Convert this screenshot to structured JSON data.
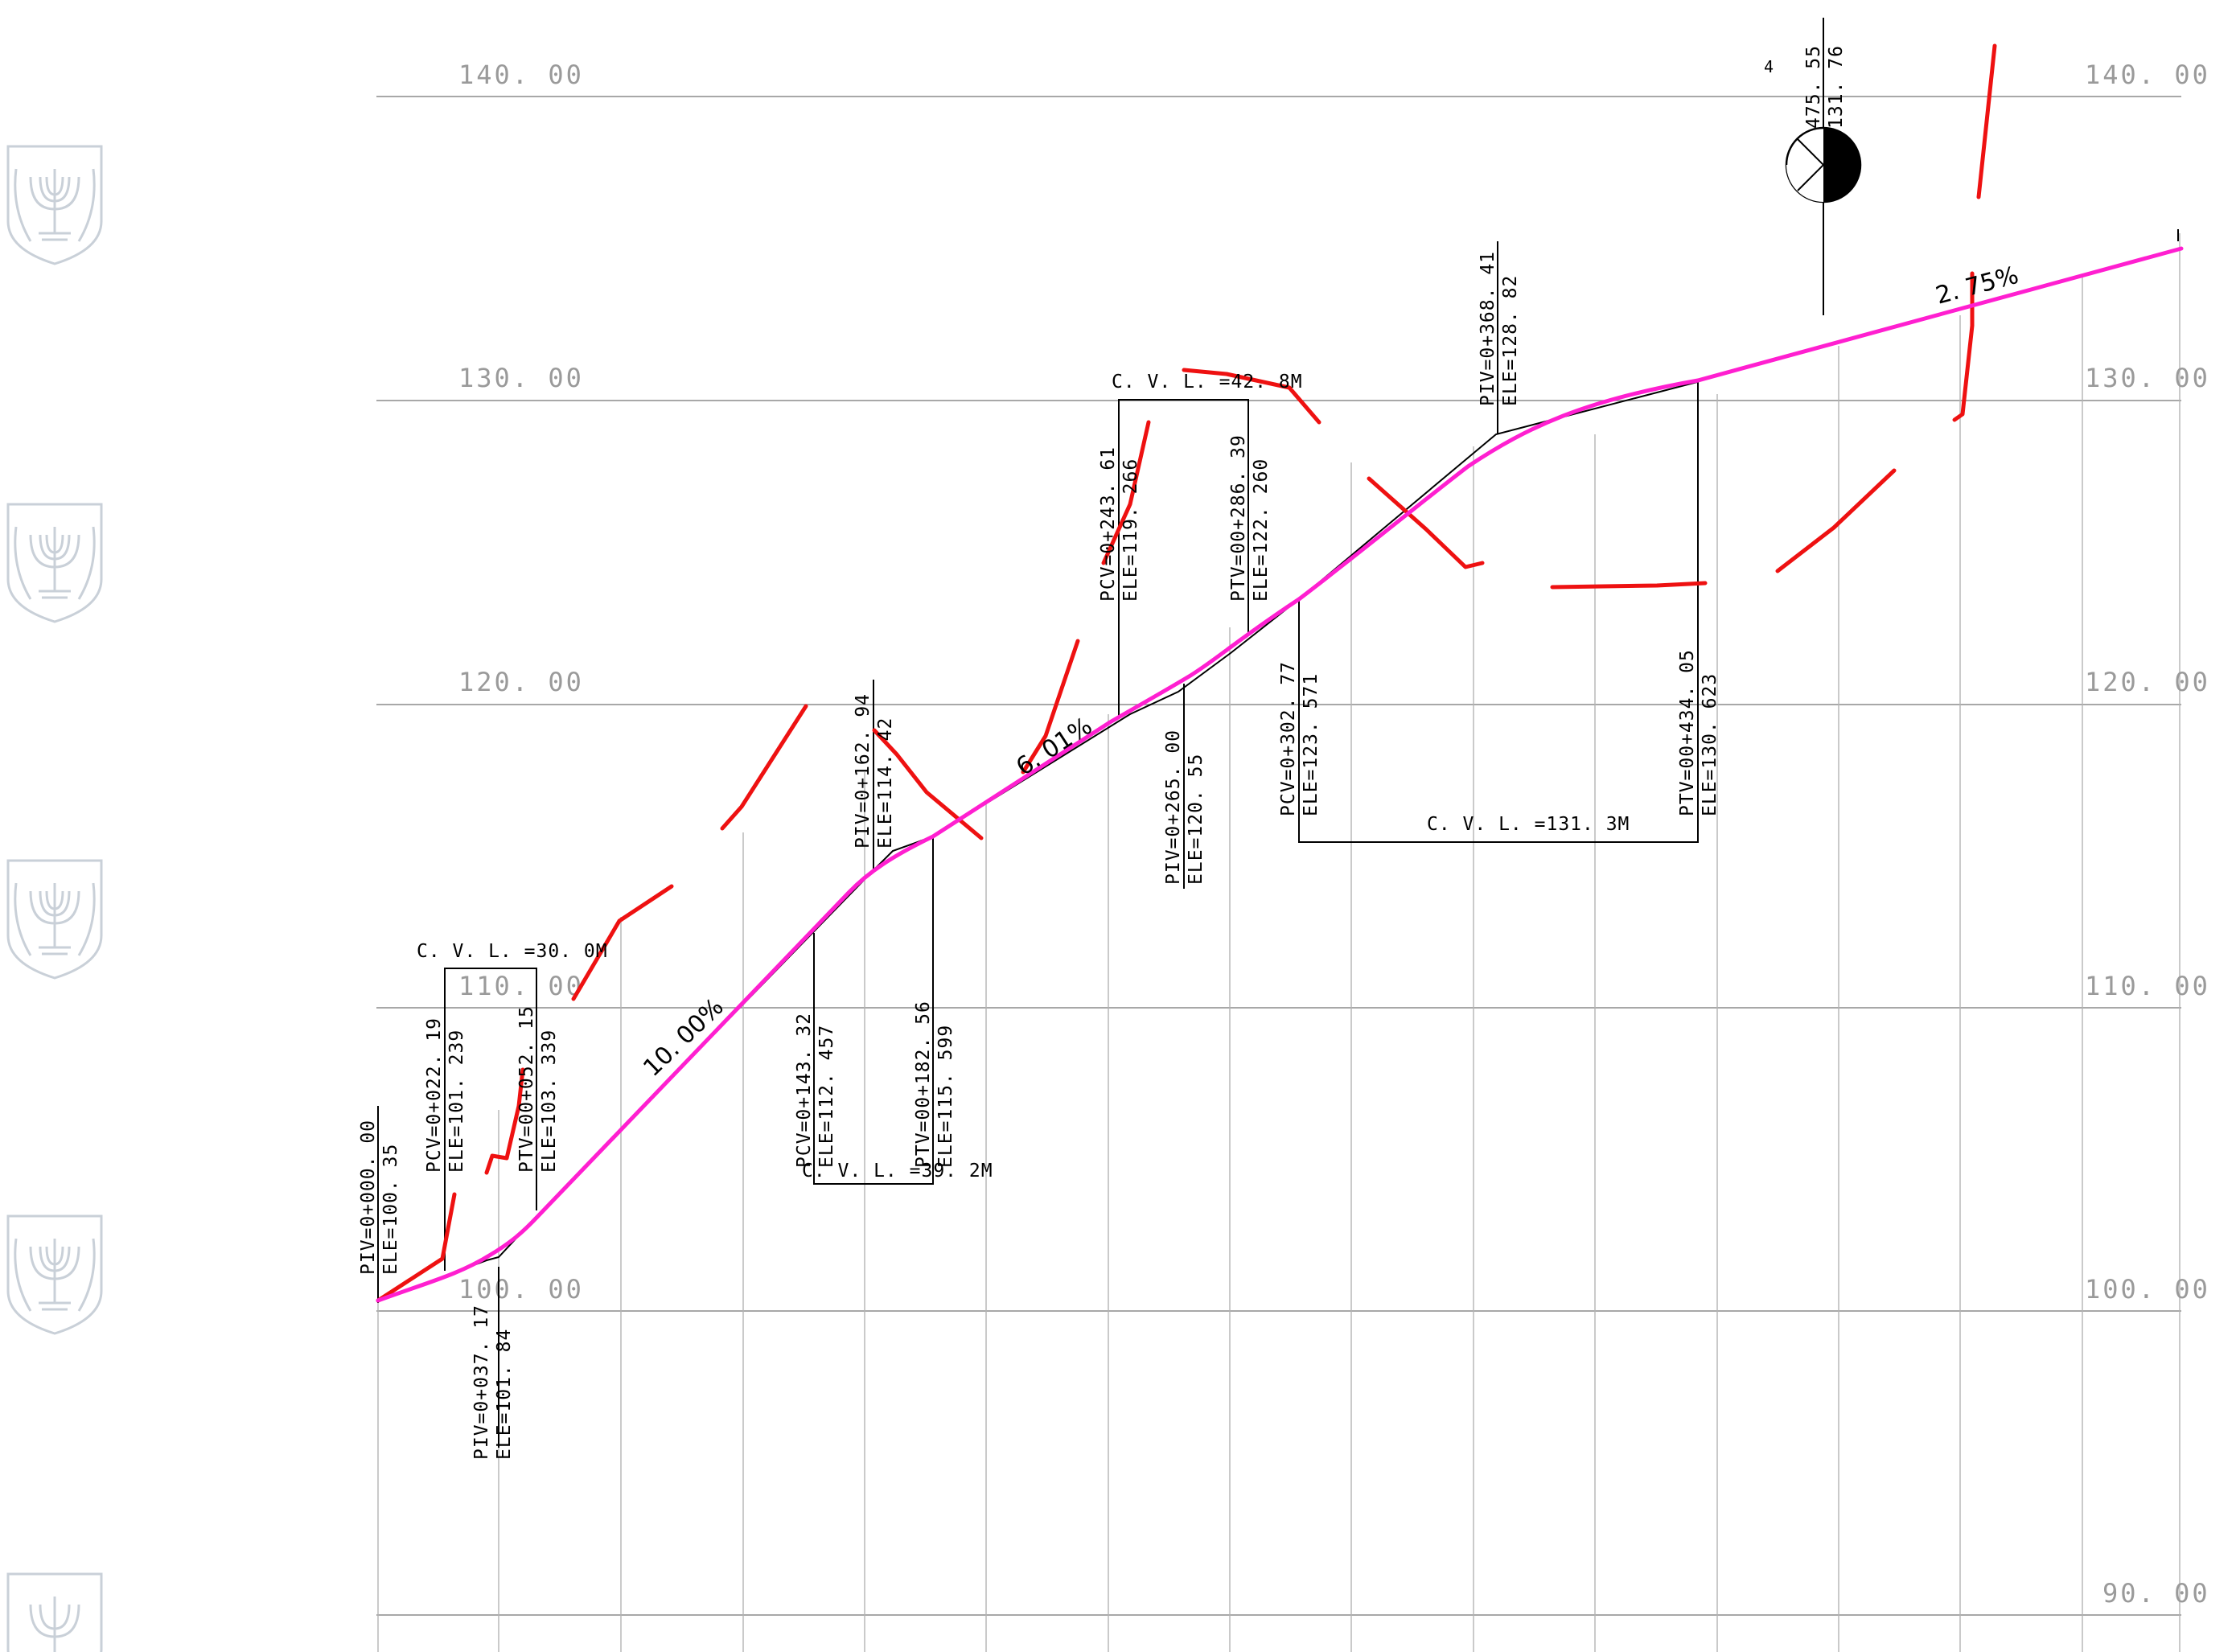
{
  "elevation_labels": [
    "140. 00",
    "130. 00",
    "120. 00",
    "110. 00",
    "100. 00",
    "90. 00"
  ],
  "curves": [
    {
      "pcv": "PCV=0+022. 19",
      "pcv_ele": "ELE=101. 239",
      "piv": "PIV=0+037. 17",
      "piv_ele": "ELE=101. 84",
      "ptv": "PTV=00+052. 15",
      "ptv_ele": "ELE=103. 339",
      "cvl": "C. V. L. =30. 0M"
    },
    {
      "pcv": "PCV=0+143. 32",
      "pcv_ele": "ELE=112. 457",
      "piv": "PIV=0+162. 94",
      "piv_ele": "ELE=114. 42",
      "ptv": "PTV=00+182. 56",
      "ptv_ele": "ELE=115. 599",
      "cvl": "C. V. L. =39. 2M"
    },
    {
      "pcv": "PCV=0+243. 61",
      "pcv_ele": "ELE=119. 266",
      "piv": "PIV=0+265. 00",
      "piv_ele": "ELE=120. 55",
      "ptv": "PTV=00+286. 39",
      "ptv_ele": "ELE=122. 260",
      "cvl": "C. V. L. =42. 8M"
    },
    {
      "pcv": "PCV=0+302. 77",
      "pcv_ele": "ELE=123. 571",
      "piv": "PIV=0+368. 41",
      "piv_ele": "ELE=128. 82",
      "ptv": "PTV=00+434. 05",
      "ptv_ele": "ELE=130. 623",
      "cvl": "C. V. L. =131. 3M"
    }
  ],
  "start_point": {
    "piv": "PIV=0+000. 00",
    "ele": "ELE=100. 35"
  },
  "grades": [
    "10. 00%",
    "6. 01%",
    "2. 75%"
  ],
  "benchmark": {
    "number": "4",
    "station": "475. 55",
    "elevation": "131. 76"
  },
  "colors": {
    "design_line": "#ff1fd0",
    "markup": "#ee1111",
    "grid": "#9a9a9a",
    "linework": "#000000"
  },
  "emblem_icon": "menorah-emblem-icon"
}
